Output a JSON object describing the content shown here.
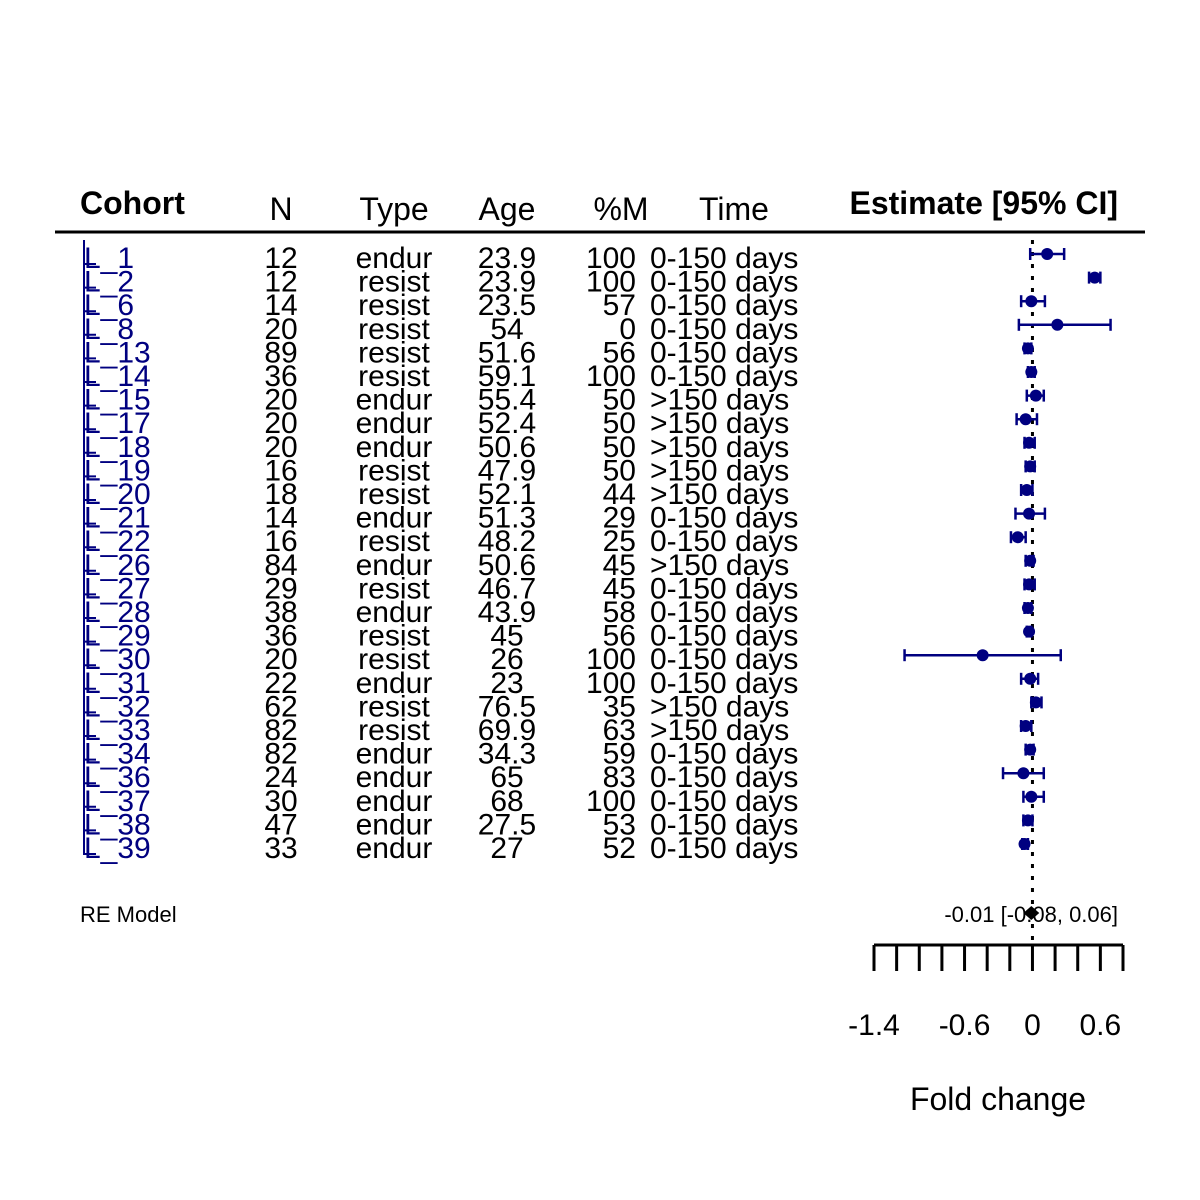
{
  "chart_data": {
    "type": "forest",
    "columns": [
      {
        "key": "cohort",
        "label": "Cohort"
      },
      {
        "key": "n",
        "label": "N"
      },
      {
        "key": "type",
        "label": "Type"
      },
      {
        "key": "age",
        "label": "Age"
      },
      {
        "key": "pm",
        "label": "%M"
      },
      {
        "key": "time",
        "label": "Time"
      }
    ],
    "estimate_header": "Estimate [95% CI]",
    "rows": [
      {
        "cohort": "L_1",
        "n": "12",
        "type": "endur",
        "age": "23.9",
        "pm": "100",
        "time": "0-150 days",
        "est": 0.13,
        "lo": -0.02,
        "hi": 0.28
      },
      {
        "cohort": "L_2",
        "n": "12",
        "type": "resist",
        "age": "23.9",
        "pm": "100",
        "time": "0-150 days",
        "est": 0.55,
        "lo": 0.5,
        "hi": 0.6
      },
      {
        "cohort": "L_6",
        "n": "14",
        "type": "resist",
        "age": "23.5",
        "pm": "57",
        "time": "0-150 days",
        "est": -0.01,
        "lo": -0.1,
        "hi": 0.11
      },
      {
        "cohort": "L_8",
        "n": "20",
        "type": "resist",
        "age": "54",
        "pm": "0",
        "time": "0-150 days",
        "est": 0.22,
        "lo": -0.12,
        "hi": 0.69
      },
      {
        "cohort": "L_13",
        "n": "89",
        "type": "resist",
        "age": "51.6",
        "pm": "56",
        "time": "0-150 days",
        "est": -0.04,
        "lo": -0.07,
        "hi": -0.01
      },
      {
        "cohort": "L_14",
        "n": "36",
        "type": "resist",
        "age": "59.1",
        "pm": "100",
        "time": "0-150 days",
        "est": -0.01,
        "lo": -0.04,
        "hi": 0.02
      },
      {
        "cohort": "L_15",
        "n": "20",
        "type": "endur",
        "age": "55.4",
        "pm": "50",
        "time": ">150 days",
        "est": 0.03,
        "lo": -0.05,
        "hi": 0.1
      },
      {
        "cohort": "L_17",
        "n": "20",
        "type": "endur",
        "age": "52.4",
        "pm": "50",
        "time": ">150 days",
        "est": -0.06,
        "lo": -0.14,
        "hi": 0.04
      },
      {
        "cohort": "L_18",
        "n": "20",
        "type": "endur",
        "age": "50.6",
        "pm": "50",
        "time": ">150 days",
        "est": -0.03,
        "lo": -0.07,
        "hi": 0.02
      },
      {
        "cohort": "L_19",
        "n": "16",
        "type": "resist",
        "age": "47.9",
        "pm": "50",
        "time": ">150 days",
        "est": -0.02,
        "lo": -0.06,
        "hi": 0.02
      },
      {
        "cohort": "L_20",
        "n": "18",
        "type": "resist",
        "age": "52.1",
        "pm": "44",
        "time": ">150 days",
        "est": -0.05,
        "lo": -0.1,
        "hi": 0.0
      },
      {
        "cohort": "L_21",
        "n": "14",
        "type": "endur",
        "age": "51.3",
        "pm": "29",
        "time": "0-150 days",
        "est": -0.03,
        "lo": -0.15,
        "hi": 0.11
      },
      {
        "cohort": "L_22",
        "n": "16",
        "type": "resist",
        "age": "48.2",
        "pm": "25",
        "time": "0-150 days",
        "est": -0.13,
        "lo": -0.19,
        "hi": -0.06
      },
      {
        "cohort": "L_26",
        "n": "84",
        "type": "endur",
        "age": "50.6",
        "pm": "45",
        "time": ">150 days",
        "est": -0.02,
        "lo": -0.06,
        "hi": 0.01
      },
      {
        "cohort": "L_27",
        "n": "29",
        "type": "resist",
        "age": "46.7",
        "pm": "45",
        "time": "0-150 days",
        "est": -0.03,
        "lo": -0.07,
        "hi": 0.02
      },
      {
        "cohort": "L_28",
        "n": "38",
        "type": "endur",
        "age": "43.9",
        "pm": "58",
        "time": "0-150 days",
        "est": -0.04,
        "lo": -0.07,
        "hi": -0.01
      },
      {
        "cohort": "L_29",
        "n": "36",
        "type": "resist",
        "age": "45",
        "pm": "56",
        "time": "0-150 days",
        "est": -0.03,
        "lo": -0.05,
        "hi": -0.01
      },
      {
        "cohort": "L_30",
        "n": "20",
        "type": "resist",
        "age": "26",
        "pm": "100",
        "time": "0-150 days",
        "est": -0.44,
        "lo": -1.13,
        "hi": 0.25
      },
      {
        "cohort": "L_31",
        "n": "22",
        "type": "endur",
        "age": "23",
        "pm": "100",
        "time": "0-150 days",
        "est": -0.02,
        "lo": -0.1,
        "hi": 0.05
      },
      {
        "cohort": "L_32",
        "n": "62",
        "type": "resist",
        "age": "76.5",
        "pm": "35",
        "time": ">150 days",
        "est": 0.03,
        "lo": -0.01,
        "hi": 0.08
      },
      {
        "cohort": "L_33",
        "n": "82",
        "type": "resist",
        "age": "69.9",
        "pm": "63",
        "time": ">150 days",
        "est": -0.06,
        "lo": -0.1,
        "hi": -0.01
      },
      {
        "cohort": "L_34",
        "n": "82",
        "type": "endur",
        "age": "34.3",
        "pm": "59",
        "time": "0-150 days",
        "est": -0.02,
        "lo": -0.06,
        "hi": 0.01
      },
      {
        "cohort": "L_36",
        "n": "24",
        "type": "endur",
        "age": "65",
        "pm": "83",
        "time": "0-150 days",
        "est": -0.08,
        "lo": -0.26,
        "hi": 0.1
      },
      {
        "cohort": "L_37",
        "n": "30",
        "type": "endur",
        "age": "68",
        "pm": "100",
        "time": "0-150 days",
        "est": -0.01,
        "lo": -0.08,
        "hi": 0.1
      },
      {
        "cohort": "L_38",
        "n": "47",
        "type": "endur",
        "age": "27.5",
        "pm": "53",
        "time": "0-150 days",
        "est": -0.04,
        "lo": -0.08,
        "hi": 0.0
      },
      {
        "cohort": "L_39",
        "n": "33",
        "type": "endur",
        "age": "27",
        "pm": "52",
        "time": "0-150 days",
        "est": -0.07,
        "lo": -0.09,
        "hi": -0.04
      }
    ],
    "summary": {
      "label": "RE Model",
      "est": -0.01,
      "lo": -0.08,
      "hi": 0.06,
      "text": "-0.01 [-0.08, 0.06]"
    },
    "xaxis": {
      "label": "Fold change",
      "range": [
        -1.4,
        0.8
      ],
      "ticks": [
        -1.4,
        -1.2,
        -1.0,
        -0.8,
        -0.6,
        -0.4,
        -0.2,
        0.0,
        0.2,
        0.4,
        0.6,
        0.8
      ],
      "tick_labels": [
        {
          "value": -1.4,
          "text": "-1.4"
        },
        {
          "value": -0.6,
          "text": "-0.6"
        },
        {
          "value": 0.0,
          "text": "0"
        },
        {
          "value": 0.6,
          "text": "0.6"
        }
      ]
    },
    "reference_line": 0,
    "colors": {
      "study": "#000080",
      "text": "#000000",
      "cohort_text": "#000080"
    }
  }
}
